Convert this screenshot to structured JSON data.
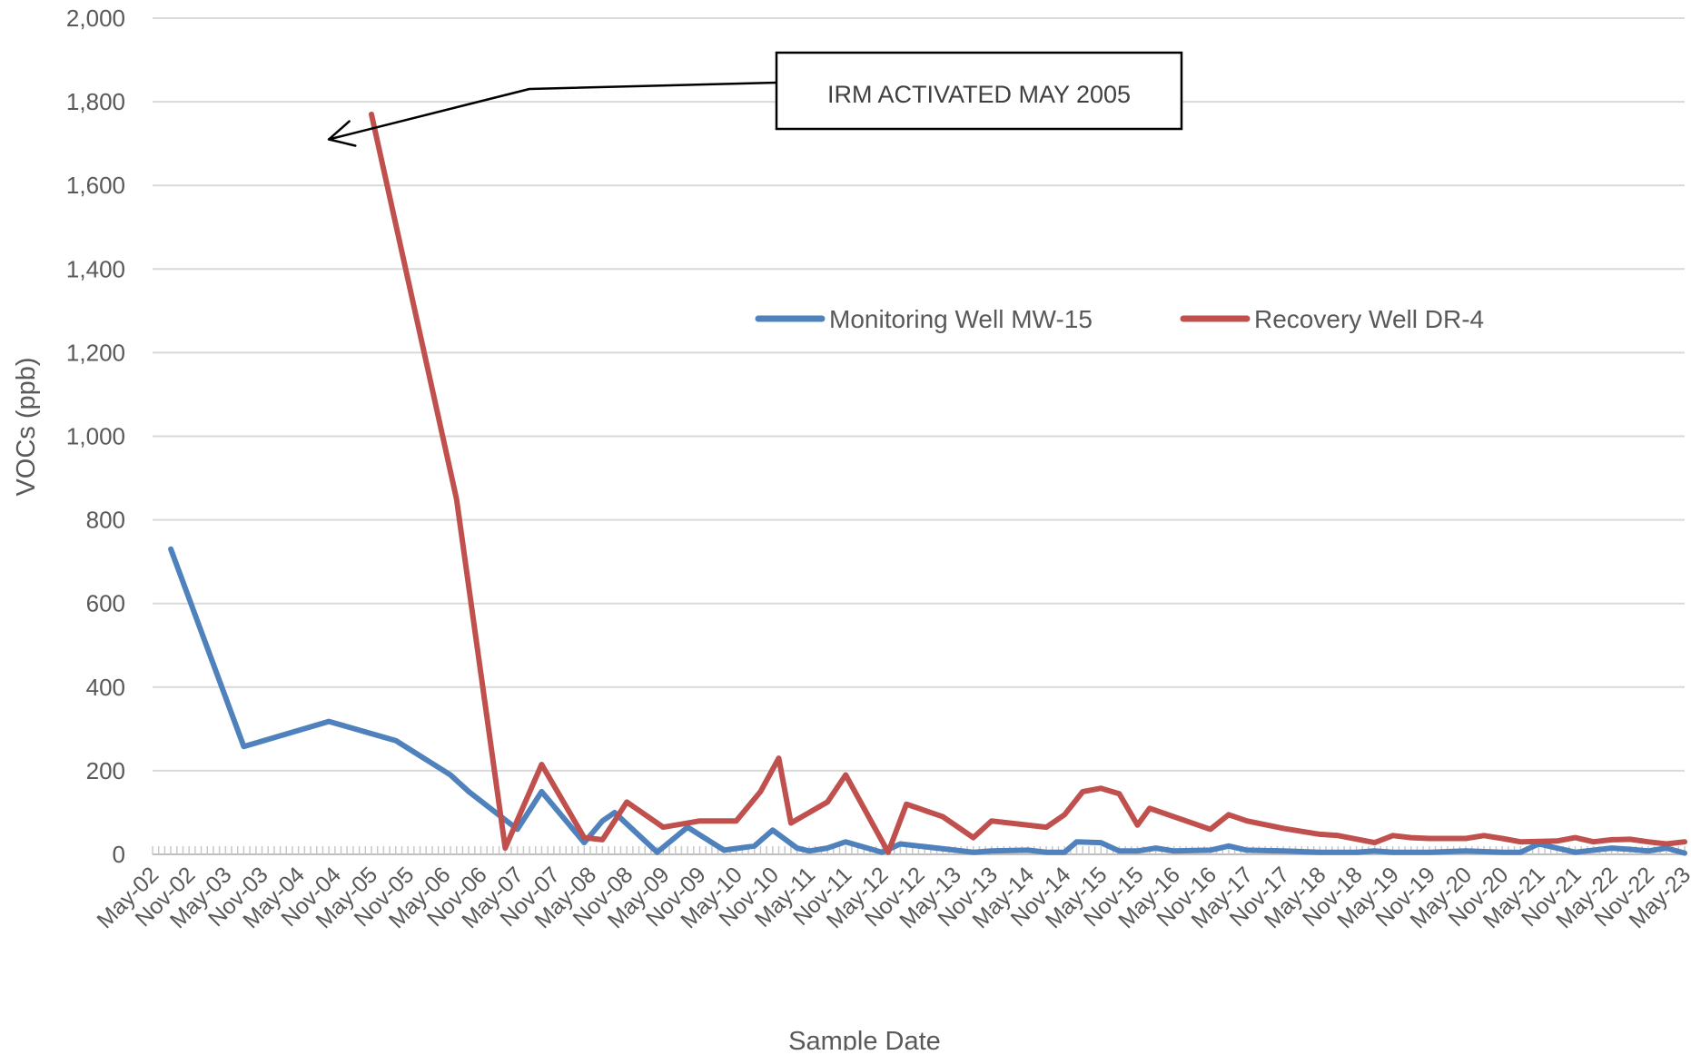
{
  "chart_data": {
    "type": "line",
    "title": "",
    "xlabel": "Sample Date",
    "ylabel": "VOCs (ppb)",
    "ylim": [
      0,
      2000
    ],
    "yticks": [
      "0",
      "200",
      "400",
      "600",
      "800",
      "1,000",
      "1,200",
      "1,400",
      "1,600",
      "1,800",
      "2,000"
    ],
    "x_range": [
      "2002-05",
      "2023-05"
    ],
    "x_ticks": [
      "May-02",
      "Nov-02",
      "May-03",
      "Nov-03",
      "May-04",
      "Nov-04",
      "May-05",
      "Nov-05",
      "May-06",
      "Nov-06",
      "May-07",
      "Nov-07",
      "May-08",
      "Nov-08",
      "May-09",
      "Nov-09",
      "May-10",
      "Nov-10",
      "May-11",
      "Nov-11",
      "May-12",
      "Nov-12",
      "May-13",
      "Nov-13",
      "May-14",
      "Nov-14",
      "May-15",
      "Nov-15",
      "May-16",
      "Nov-16",
      "May-17",
      "Nov-17",
      "May-18",
      "Nov-18",
      "May-19",
      "Nov-19",
      "May-20",
      "Nov-20",
      "May-21",
      "Nov-21",
      "May-22",
      "Nov-22",
      "May-23"
    ],
    "grid": true,
    "legend_position": "center-right",
    "annotation": {
      "text": "IRM ACTIVATED MAY 2005",
      "arrow_target": [
        "2004-10",
        1710
      ]
    },
    "series": [
      {
        "name": "Monitoring Well MW-15",
        "color": "#4f81bd",
        "points": [
          [
            "2002-08",
            730
          ],
          [
            "2003-08",
            258
          ],
          [
            "2004-10",
            318
          ],
          [
            "2005-09",
            272
          ],
          [
            "2006-06",
            190
          ],
          [
            "2006-09",
            150
          ],
          [
            "2007-05",
            60
          ],
          [
            "2007-09",
            150
          ],
          [
            "2008-04",
            28
          ],
          [
            "2008-07",
            80
          ],
          [
            "2008-09",
            100
          ],
          [
            "2009-04",
            5
          ],
          [
            "2009-09",
            65
          ],
          [
            "2010-03",
            10
          ],
          [
            "2010-08",
            20
          ],
          [
            "2010-11",
            58
          ],
          [
            "2011-03",
            15
          ],
          [
            "2011-05",
            8
          ],
          [
            "2011-08",
            15
          ],
          [
            "2011-11",
            30
          ],
          [
            "2012-05",
            5
          ],
          [
            "2012-08",
            25
          ],
          [
            "2012-11",
            20
          ],
          [
            "2013-05",
            10
          ],
          [
            "2013-08",
            5
          ],
          [
            "2013-11",
            8
          ],
          [
            "2014-05",
            10
          ],
          [
            "2014-08",
            5
          ],
          [
            "2014-11",
            5
          ],
          [
            "2015-01",
            30
          ],
          [
            "2015-05",
            28
          ],
          [
            "2015-08",
            8
          ],
          [
            "2015-11",
            8
          ],
          [
            "2016-02",
            15
          ],
          [
            "2016-05",
            8
          ],
          [
            "2016-11",
            10
          ],
          [
            "2017-02",
            20
          ],
          [
            "2017-05",
            10
          ],
          [
            "2017-11",
            8
          ],
          [
            "2018-05",
            5
          ],
          [
            "2018-11",
            5
          ],
          [
            "2019-02",
            8
          ],
          [
            "2019-05",
            5
          ],
          [
            "2019-11",
            5
          ],
          [
            "2020-05",
            8
          ],
          [
            "2020-11",
            5
          ],
          [
            "2021-02",
            5
          ],
          [
            "2021-05",
            25
          ],
          [
            "2021-11",
            5
          ],
          [
            "2022-05",
            15
          ],
          [
            "2022-08",
            12
          ],
          [
            "2022-11",
            8
          ],
          [
            "2023-02",
            15
          ],
          [
            "2023-05",
            3
          ]
        ]
      },
      {
        "name": "Recovery Well DR-4",
        "color": "#c0504d",
        "points": [
          [
            "2005-05",
            1770
          ],
          [
            "2006-07",
            850
          ],
          [
            "2007-03",
            15
          ],
          [
            "2007-09",
            215
          ],
          [
            "2008-04",
            40
          ],
          [
            "2008-07",
            35
          ],
          [
            "2008-11",
            125
          ],
          [
            "2009-05",
            65
          ],
          [
            "2009-11",
            80
          ],
          [
            "2010-05",
            80
          ],
          [
            "2010-09",
            150
          ],
          [
            "2010-12",
            230
          ],
          [
            "2011-02",
            75
          ],
          [
            "2011-08",
            125
          ],
          [
            "2011-11",
            190
          ],
          [
            "2012-06",
            5
          ],
          [
            "2012-09",
            120
          ],
          [
            "2013-03",
            90
          ],
          [
            "2013-08",
            40
          ],
          [
            "2013-11",
            80
          ],
          [
            "2014-08",
            65
          ],
          [
            "2014-11",
            95
          ],
          [
            "2015-02",
            150
          ],
          [
            "2015-05",
            158
          ],
          [
            "2015-08",
            145
          ],
          [
            "2015-11",
            70
          ],
          [
            "2016-01",
            110
          ],
          [
            "2016-05",
            90
          ],
          [
            "2016-11",
            60
          ],
          [
            "2017-02",
            95
          ],
          [
            "2017-05",
            80
          ],
          [
            "2017-11",
            62
          ],
          [
            "2018-05",
            48
          ],
          [
            "2018-08",
            45
          ],
          [
            "2019-02",
            28
          ],
          [
            "2019-05",
            45
          ],
          [
            "2019-08",
            40
          ],
          [
            "2019-11",
            38
          ],
          [
            "2020-02",
            38
          ],
          [
            "2020-05",
            38
          ],
          [
            "2020-08",
            45
          ],
          [
            "2020-11",
            38
          ],
          [
            "2021-02",
            30
          ],
          [
            "2021-08",
            32
          ],
          [
            "2021-11",
            40
          ],
          [
            "2022-02",
            30
          ],
          [
            "2022-05",
            35
          ],
          [
            "2022-08",
            36
          ],
          [
            "2022-11",
            30
          ],
          [
            "2023-02",
            25
          ],
          [
            "2023-05",
            30
          ]
        ]
      }
    ]
  }
}
